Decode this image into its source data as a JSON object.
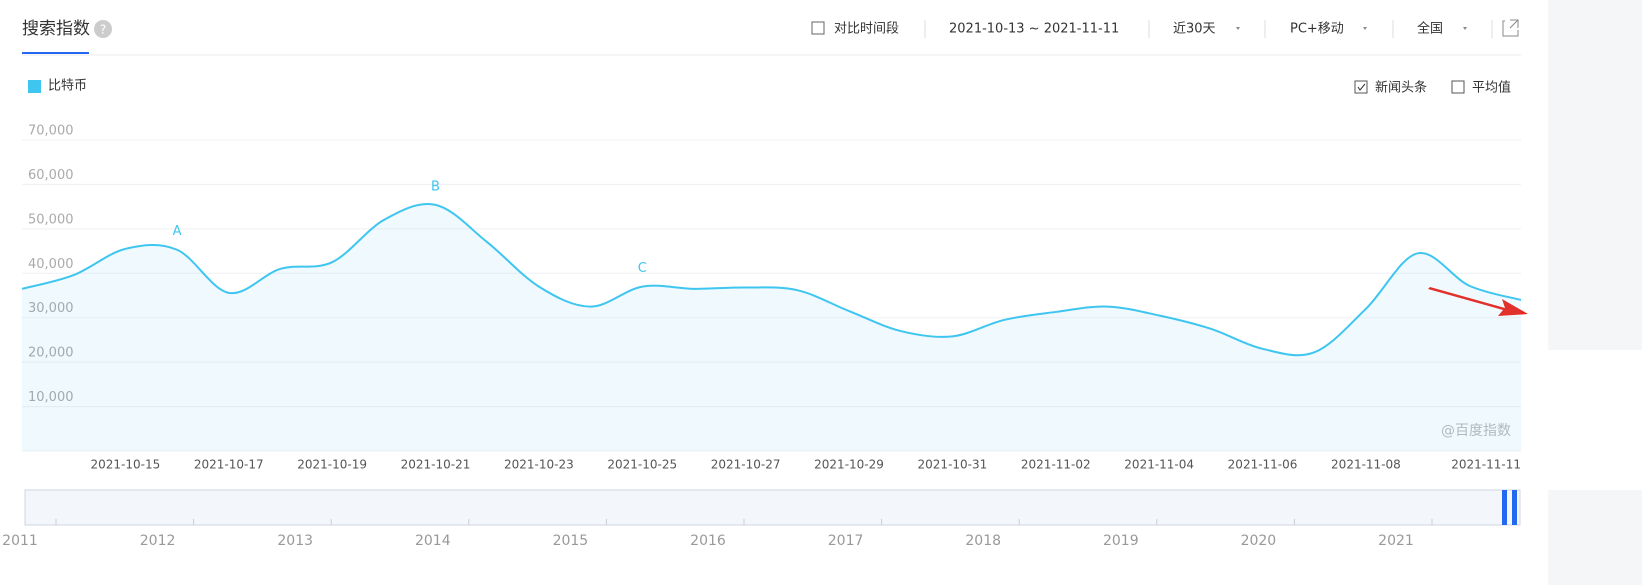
{
  "header": {
    "title": "搜索指数",
    "compare": "对比时间段",
    "range": "2021-10-13 ~ 2021-11-11",
    "period": "近30天",
    "device": "PC+移动",
    "region": "全国"
  },
  "options": {
    "news": "新闻头条",
    "average": "平均值"
  },
  "watermark": "@百度指数",
  "navigator": {
    "years": [
      "2011",
      "2012",
      "2013",
      "2014",
      "2015",
      "2016",
      "2017",
      "2018",
      "2019",
      "2020",
      "2021"
    ]
  },
  "chart_data": {
    "type": "area",
    "annotations": [
      "A",
      "B",
      "C"
    ],
    "categories": [
      null,
      null,
      "2021-10-15",
      null,
      "2021-10-17",
      null,
      "2021-10-19",
      null,
      "2021-10-21",
      null,
      "2021-10-23",
      null,
      "2021-10-25",
      null,
      "2021-10-27",
      null,
      "2021-10-29",
      null,
      "2021-10-31",
      null,
      "2021-11-02",
      null,
      "2021-11-04",
      null,
      "2021-11-06",
      null,
      "2021-11-08",
      null,
      null,
      "2021-11-11"
    ],
    "series": [
      {
        "name": "比特币",
        "color": "#3ec5f0",
        "values": [
          36500,
          39600,
          45500,
          45300,
          35600,
          41000,
          42500,
          52000,
          55400,
          47000,
          37000,
          32500,
          37000,
          36500,
          36800,
          36200,
          31500,
          27000,
          25800,
          29500,
          31300,
          32500,
          30500,
          27500,
          23000,
          22200,
          32000,
          44500,
          37200,
          34000
        ]
      }
    ],
    "ylim": [
      0,
      70000
    ],
    "yticks": [
      {
        "value": 10000,
        "label": "10,000"
      },
      {
        "value": 20000,
        "label": "20,000"
      },
      {
        "value": 30000,
        "label": "30,000"
      },
      {
        "value": 40000,
        "label": "40,000"
      },
      {
        "value": 50000,
        "label": "50,000"
      },
      {
        "value": 60000,
        "label": "60,000"
      },
      {
        "value": 70000,
        "label": "70,000"
      }
    ],
    "grid": true
  }
}
